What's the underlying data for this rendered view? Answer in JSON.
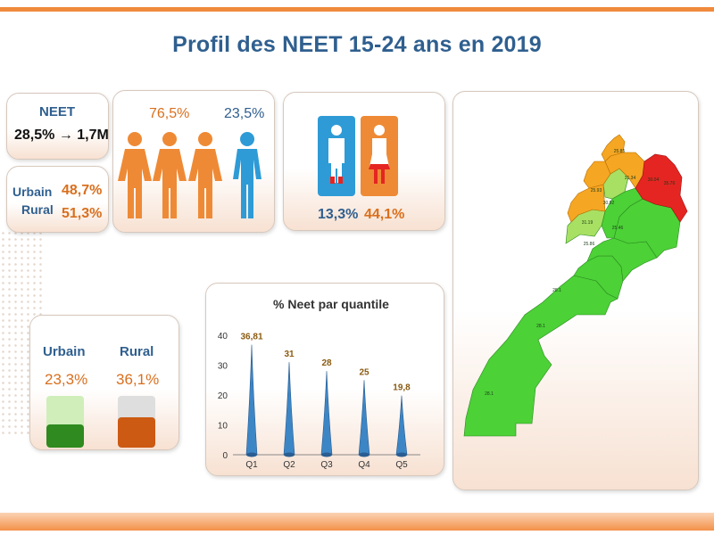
{
  "title": "Profil des NEET 15-24 ans en 2019",
  "neet_total": {
    "label": "NEET",
    "value": "28,5% → 1,7M"
  },
  "area_split": {
    "urban_label": "Urbain",
    "urban_value": "48,7%",
    "rural_label": "Rural",
    "rural_value": "51,3%"
  },
  "gender_split": {
    "female_pct": "76,5%",
    "male_pct": "23,5%"
  },
  "gender_rates": {
    "male_rate": "13,3%",
    "female_rate": "44,1%"
  },
  "area_rates": {
    "urban_label": "Urbain",
    "urban_value": "23,3%",
    "rural_label": "Rural",
    "rural_value": "36,1%"
  },
  "colors": {
    "title": "#2f5f8f",
    "accent_orange": "#f08a3c",
    "male_blue": "#2e9bd6",
    "female_orange": "#ee8a36",
    "map_green": "#4cd137",
    "map_lightgreen": "#a8e063",
    "map_orange": "#f5a623",
    "map_red": "#e52521"
  },
  "chart_data": {
    "type": "bar",
    "title": "% Neet par quantile",
    "categories": [
      "Q1",
      "Q2",
      "Q3",
      "Q4",
      "Q5"
    ],
    "values": [
      36.81,
      31,
      28,
      25,
      19.8
    ],
    "value_labels": [
      "36,81",
      "31",
      "28",
      "25",
      "19,8"
    ],
    "yticks": [
      0,
      10,
      20,
      30,
      40
    ],
    "ylim": [
      0,
      40
    ],
    "grid": false,
    "xlabel": "",
    "ylabel": ""
  },
  "map": {
    "region_labels": [
      "25.85",
      "31.34",
      "30.04",
      "35.76",
      "25.93",
      "30.92",
      "31.19",
      "25.46",
      "25.86",
      "28.1",
      "28.1",
      "28.1"
    ]
  }
}
